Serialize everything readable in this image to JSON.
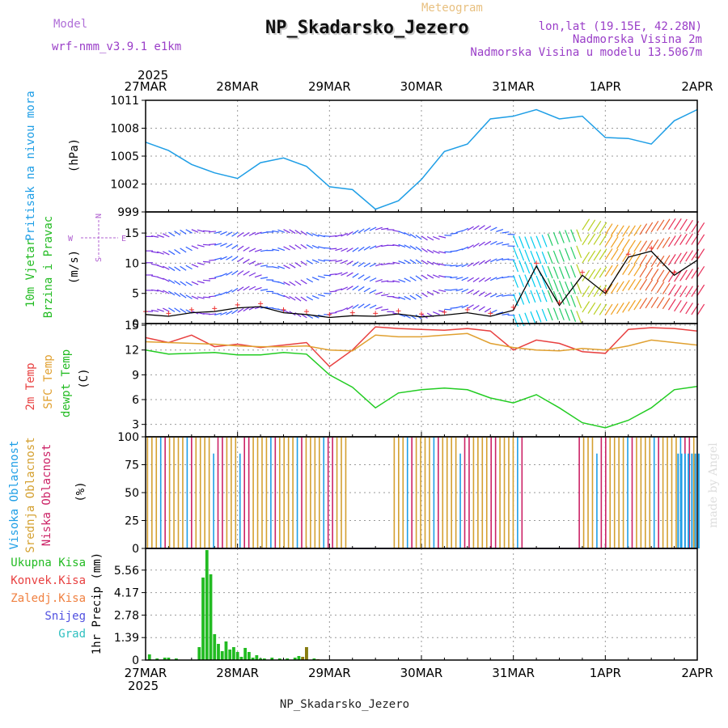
{
  "header": {
    "model_label": "Model",
    "model_name": "wrf-nmm_v3.9.1 e1km",
    "product": "Meteogram",
    "station": "NP_Skadarsko_Jezero",
    "lonlat": "lon,lat (19.15E, 42.28N)",
    "elevation": "Nadmorska Visina 2m",
    "model_elevation": "Nadmorska Visina u modelu 13.5067m",
    "footer_station": "NP_Skadarsko_Jezero",
    "credit": "made by Angel"
  },
  "axis": {
    "year": "2025",
    "dates": [
      "27MAR",
      "28MAR",
      "29MAR",
      "30MAR",
      "31MAR",
      "1APR",
      "2APR"
    ]
  },
  "colors": {
    "pressure": "#1e9ee6",
    "temp2m": "#e84040",
    "sfc": "#e0a030",
    "dewpt": "#22cc22",
    "high_cloud": "#1e9ee6",
    "mid_cloud": "#d4a030",
    "low_cloud": "#cc2266",
    "precip": "#22bb22",
    "conv": "#8a7a10"
  },
  "labels": {
    "pressure_title": "Pritisak na nivou mora",
    "pressure_unit": "(hPa)",
    "wind_title1": "10m Vjetar",
    "wind_title2": "Brzina i Pravac",
    "wind_unit": "(m/s)",
    "compass_n": "N",
    "compass_s": "S",
    "compass_w": "W",
    "compass_e": "E",
    "temp_title1": "2m Temp",
    "temp_title2": "SFC Temp",
    "temp_title3": "dewpt Temp",
    "temp_unit": "(C)",
    "cloud_title1": "Visoka Oblacnost",
    "cloud_title2": "Srednja Oblacnost",
    "cloud_title3": "Niska Oblacnost",
    "cloud_unit": "(%)",
    "precip_legend": [
      "Ukupna Kisa",
      "Konvek.Kisa",
      "Zaledj.Kisa",
      "Snijeg",
      "Grad"
    ],
    "precip_unit": "1hr Precip (mm)"
  },
  "chart_data": [
    {
      "type": "line",
      "name": "pressure",
      "y_ticks": [
        "999",
        "1002",
        "1005",
        "1008",
        "1011"
      ],
      "ylim": [
        999,
        1011
      ],
      "x": [
        0,
        6,
        12,
        18,
        24,
        30,
        36,
        42,
        48,
        54,
        60,
        66,
        72,
        78,
        84,
        90,
        96,
        102,
        108,
        114,
        120,
        126,
        132,
        138,
        144
      ],
      "series": [
        {
          "values": [
            1006.5,
            1005.6,
            1004.1,
            1003.2,
            1002.6,
            1004.3,
            1004.8,
            1003.9,
            1001.7,
            1001.4,
            999.3,
            1000.2,
            1002.5,
            1005.5,
            1006.3,
            1009.0,
            1009.3,
            1010.0,
            1009.0,
            1009.3,
            1007.0,
            1006.9,
            1006.3,
            1008.8,
            1010.0
          ]
        }
      ]
    },
    {
      "type": "line",
      "name": "wind",
      "y_ticks": [
        "0",
        "5",
        "10",
        "15"
      ],
      "ylim": [
        0,
        18.5
      ],
      "x": [
        0,
        6,
        12,
        18,
        24,
        30,
        36,
        42,
        48,
        54,
        60,
        66,
        72,
        78,
        84,
        90,
        96,
        102,
        108,
        114,
        120,
        126,
        132,
        138,
        144
      ],
      "series": [
        {
          "values": [
            1.5,
            1.2,
            1.8,
            2.0,
            2.6,
            2.8,
            1.8,
            1.5,
            1.0,
            1.3,
            1.2,
            1.6,
            1.1,
            1.4,
            1.8,
            1.2,
            2.2,
            9.5,
            3.0,
            8.0,
            5.0,
            11.0,
            12.0,
            8.0,
            10.5
          ]
        }
      ]
    },
    {
      "type": "line",
      "name": "temperature",
      "y_ticks": [
        "3",
        "6",
        "9",
        "12",
        "15"
      ],
      "ylim": [
        1.5,
        15.2
      ],
      "x": [
        0,
        6,
        12,
        18,
        24,
        30,
        36,
        42,
        48,
        54,
        60,
        66,
        72,
        78,
        84,
        90,
        96,
        102,
        108,
        114,
        120,
        126,
        132,
        138,
        144
      ],
      "series": [
        {
          "values": [
            13.5,
            12.9,
            13.8,
            12.4,
            12.7,
            12.3,
            12.6,
            12.9,
            10.0,
            12.0,
            14.8,
            14.6,
            14.5,
            14.4,
            14.6,
            14.3,
            12.0,
            13.2,
            12.8,
            11.8,
            11.6,
            14.5,
            14.7,
            14.6,
            14.3
          ]
        },
        {
          "values": [
            13.0,
            12.9,
            12.8,
            12.7,
            12.5,
            12.4,
            12.4,
            12.5,
            12.0,
            11.9,
            13.8,
            13.6,
            13.6,
            13.8,
            14.0,
            12.8,
            12.3,
            12.0,
            11.9,
            12.2,
            12.0,
            12.5,
            13.2,
            12.9,
            12.6
          ]
        },
        {
          "values": [
            12.0,
            11.5,
            11.6,
            11.7,
            11.4,
            11.4,
            11.7,
            11.5,
            9.0,
            7.5,
            5.0,
            6.8,
            7.2,
            7.4,
            7.2,
            6.2,
            5.6,
            6.6,
            5.0,
            3.2,
            2.6,
            3.5,
            5.0,
            7.2,
            7.6
          ]
        }
      ]
    },
    {
      "type": "bar",
      "name": "cloud",
      "y_ticks": [
        "0",
        "25",
        "50",
        "75",
        "100"
      ],
      "ylim": [
        0,
        100
      ],
      "clear_ranges_h": [
        [
          53,
          64
        ],
        [
          99,
          113
        ]
      ],
      "dense_high_range_h": [
        139,
        145
      ]
    },
    {
      "type": "bar",
      "name": "precip",
      "y_ticks": [
        "0",
        "1.39",
        "2.78",
        "4.17",
        "5.56"
      ],
      "ylim": [
        0,
        6.9
      ],
      "x": [
        1,
        3,
        5,
        6,
        8,
        14,
        15,
        16,
        17,
        18,
        19,
        20,
        21,
        22,
        23,
        24,
        25,
        26,
        27,
        28,
        29,
        30,
        31,
        33,
        35,
        37,
        39,
        40,
        41,
        42,
        44
      ],
      "series": [
        {
          "values": [
            0.35,
            0.1,
            0.15,
            0.15,
            0.1,
            0.8,
            5.1,
            6.8,
            5.3,
            1.6,
            1.0,
            0.55,
            1.15,
            0.65,
            0.8,
            0.5,
            0.2,
            0.75,
            0.5,
            0.15,
            0.3,
            0.1,
            0.1,
            0.15,
            0.1,
            0.1,
            0.15,
            0.25,
            0.15,
            0.8,
            0.1
          ]
        }
      ],
      "conv_x": [
        41,
        42,
        45
      ],
      "conv_values": [
        0.2,
        0.8,
        0.05
      ]
    }
  ]
}
